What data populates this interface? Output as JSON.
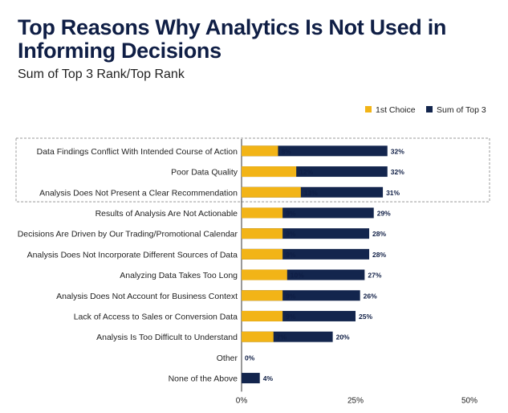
{
  "header": {
    "title": "Top Reasons Why Analytics Is Not Used in Informing Decisions",
    "subtitle": "Sum of Top 3 Rank/Top Rank"
  },
  "colors": {
    "first_choice": "#f2b417",
    "sum_top3": "#13254d",
    "highlight_border": "#999999"
  },
  "chart_data": {
    "type": "bar",
    "orientation": "horizontal",
    "value_format": "percent",
    "categories": [
      "Data Findings Conflict With Intended Course of Action",
      "Poor Data Quality",
      "Analysis Does Not Present a Clear Recommendation",
      "Results of Analysis Are Not Actionable",
      "Decisions Are Driven by Our Trading/Promotional Calendar",
      "Analysis Does Not Incorporate Different Sources of Data",
      "Analyzing Data Takes Too Long",
      "Analysis Does Not Account for Business Context",
      "Lack of Access to Sales or Conversion Data",
      "Analysis Is Too Difficult to Understand",
      "Other",
      "None of the Above"
    ],
    "series": [
      {
        "name": "1st Choice",
        "values": [
          8,
          12,
          13,
          9,
          9,
          9,
          10,
          9,
          9,
          7,
          0,
          null
        ]
      },
      {
        "name": "Sum of Top 3",
        "values": [
          32,
          32,
          31,
          29,
          28,
          28,
          27,
          26,
          25,
          20,
          0,
          4
        ]
      }
    ],
    "xlim": [
      0,
      50
    ],
    "xticks": [
      "0%",
      "25%",
      "50%"
    ],
    "xtick_values": [
      0,
      25,
      50
    ],
    "highlighted_categories": 3,
    "legend": {
      "placement": "top-right",
      "entries": [
        "1st Choice",
        "Sum of Top 3"
      ]
    }
  }
}
